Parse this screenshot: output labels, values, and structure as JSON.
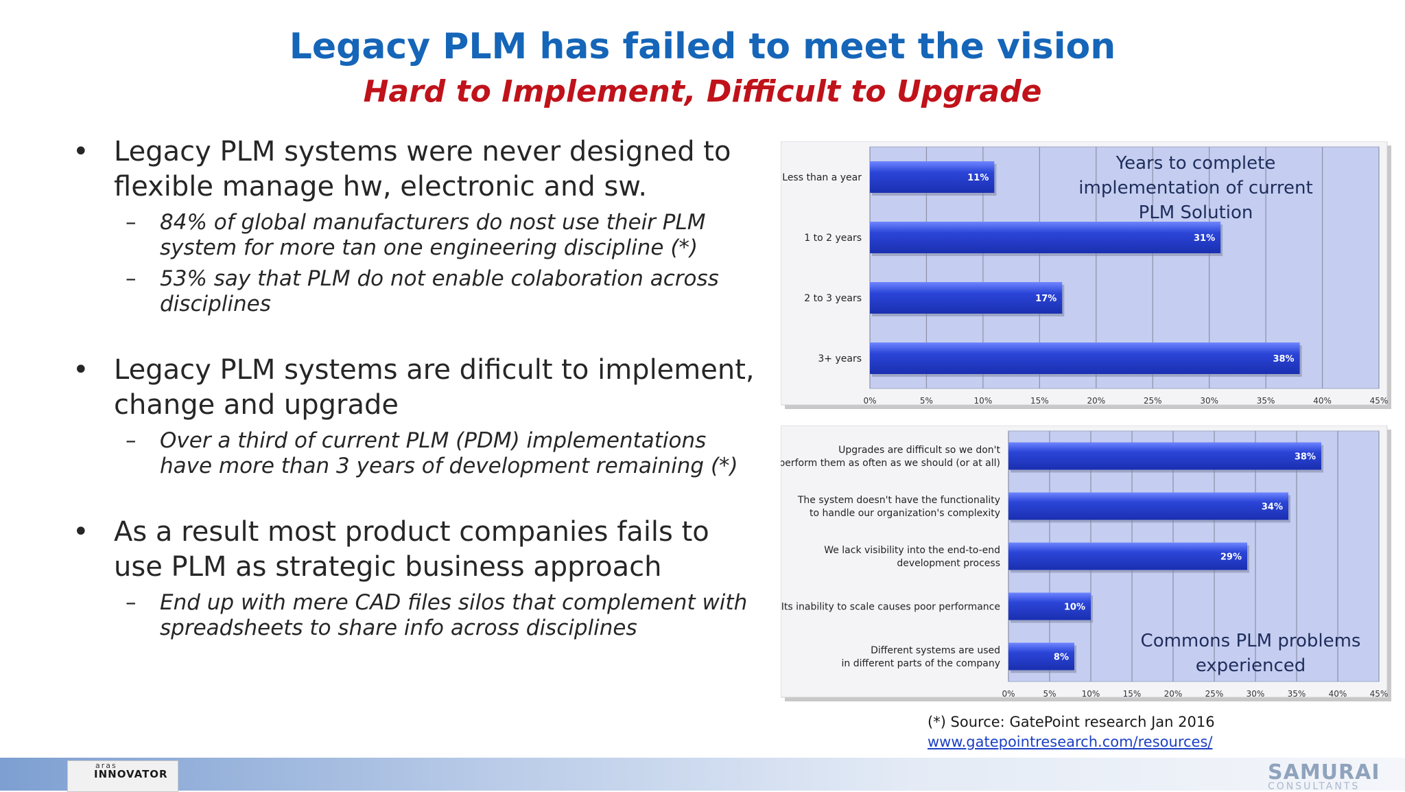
{
  "title": "Legacy PLM has failed to meet the vision",
  "subtitle": "Hard to Implement, Difficult to Upgrade",
  "bullets": [
    {
      "text": "Legacy PLM systems were never designed to flexible manage hw, electronic and sw.",
      "sub": [
        "84% of global manufacturers do nost use their PLM system for more tan one engineering discipline (*)",
        "53% say that PLM do not enable colaboration across disciplines"
      ]
    },
    {
      "text": "Legacy PLM systems are dificult to implement, change and upgrade",
      "sub": [
        "Over a third of current PLM (PDM) implementations have more than 3 years of development remaining (*)"
      ]
    },
    {
      "text": "As a result most product companies fails to use PLM as strategic business approach",
      "sub": [
        "End up with mere CAD files silos that complement with spreadsheets to share info across disciplines"
      ]
    }
  ],
  "chart_data": [
    {
      "type": "bar",
      "orientation": "horizontal",
      "title": "Years to complete implementation of current PLM Solution",
      "categories": [
        "Less than a year",
        "1 to 2 years",
        "2 to 3 years",
        "3+ years"
      ],
      "values": [
        11,
        31,
        17,
        38
      ],
      "data_labels": [
        "11%",
        "31%",
        "17%",
        "38%"
      ],
      "xlim": [
        0,
        45
      ],
      "xticks": [
        "0%",
        "5%",
        "10%",
        "15%",
        "20%",
        "25%",
        "30%",
        "35%",
        "40%",
        "45%"
      ],
      "grid": true,
      "bar_color": "#2b45d8",
      "plot_bg": "#c5cef0"
    },
    {
      "type": "bar",
      "orientation": "horizontal",
      "title": "Commons PLM problems experienced",
      "categories": [
        [
          "Upgrades are difficult so we don't",
          "perform them as often as we should (or at all)"
        ],
        [
          "The system doesn't have the functionality",
          "to handle our organization's complexity"
        ],
        [
          "We lack visibility into the end-to-end",
          "development process"
        ],
        [
          "Its inability to scale causes poor performance"
        ],
        [
          "Different systems are used",
          "in different parts of the company"
        ]
      ],
      "values": [
        38,
        34,
        29,
        10,
        8
      ],
      "data_labels": [
        "38%",
        "34%",
        "29%",
        "10%",
        "8%"
      ],
      "xlim": [
        0,
        45
      ],
      "xticks": [
        "0%",
        "5%",
        "10%",
        "15%",
        "20%",
        "25%",
        "30%",
        "35%",
        "40%",
        "45%"
      ],
      "grid": true,
      "bar_color": "#2b45d8",
      "plot_bg": "#c5cef0"
    }
  ],
  "source": {
    "text": "(*) Source: GatePoint research Jan 2016",
    "link": "www.gatepointresearch.com/resources/"
  },
  "footer": {
    "left_logo_top": "aras",
    "left_logo": "INNOVATOR",
    "right_logo": "SAMURAI",
    "right_logo_sub": "CONSULTANTS"
  }
}
